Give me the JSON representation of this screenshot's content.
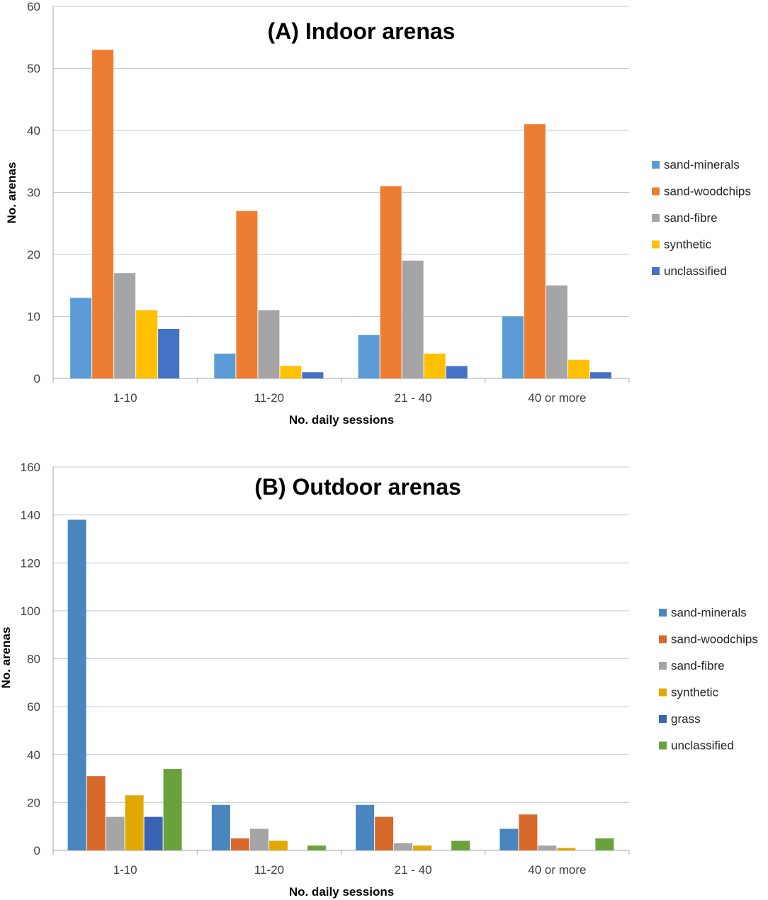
{
  "chart_data": [
    {
      "type": "bar",
      "title": "(A) Indoor arenas",
      "xlabel": "No. daily sessions",
      "ylabel": "No. arenas",
      "ylim": [
        0,
        60
      ],
      "yticks": [
        0,
        10,
        20,
        30,
        40,
        50,
        60
      ],
      "categories": [
        "1-10",
        "11-20",
        "21 - 40",
        "40 or more"
      ],
      "grid": true,
      "legend_position": "right",
      "series": [
        {
          "name": "sand-minerals",
          "color": "#5b9bd5",
          "values": [
            13,
            4,
            7,
            10
          ]
        },
        {
          "name": "sand-woodchips",
          "color": "#ed7d31",
          "values": [
            53,
            27,
            31,
            41
          ]
        },
        {
          "name": "sand-fibre",
          "color": "#a5a5a5",
          "values": [
            17,
            11,
            19,
            15
          ]
        },
        {
          "name": "synthetic",
          "color": "#ffc000",
          "values": [
            11,
            2,
            4,
            3
          ]
        },
        {
          "name": "unclassified",
          "color": "#4472c4",
          "values": [
            8,
            1,
            2,
            1
          ]
        }
      ]
    },
    {
      "type": "bar",
      "title": "(B) Outdoor arenas",
      "xlabel": "No.  daily sessions",
      "ylabel": "No. arenas",
      "ylim": [
        0,
        160
      ],
      "yticks": [
        0,
        20,
        40,
        60,
        80,
        100,
        120,
        140,
        160
      ],
      "categories": [
        "1-10",
        "11-20",
        "21 - 40",
        "40 or more"
      ],
      "grid": true,
      "legend_position": "right",
      "series": [
        {
          "name": "sand-minerals",
          "color": "#4a86bd",
          "values": [
            138,
            19,
            19,
            9
          ]
        },
        {
          "name": "sand-woodchips",
          "color": "#d8692c",
          "values": [
            31,
            5,
            14,
            15
          ]
        },
        {
          "name": "sand-fibre",
          "color": "#a5a5a5",
          "values": [
            14,
            9,
            3,
            2
          ]
        },
        {
          "name": "synthetic",
          "color": "#e0a800",
          "values": [
            23,
            4,
            2,
            1
          ]
        },
        {
          "name": "grass",
          "color": "#3a63b3",
          "values": [
            14,
            0,
            0,
            0
          ]
        },
        {
          "name": "unclassified",
          "color": "#6aa13d",
          "values": [
            34,
            2,
            4,
            5
          ]
        }
      ]
    }
  ]
}
